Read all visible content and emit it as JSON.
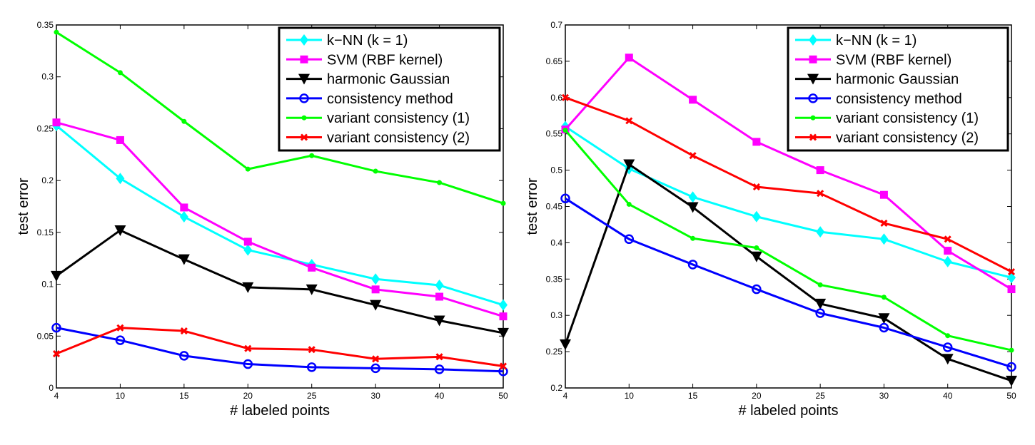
{
  "legend_labels": [
    "k−NN (k = 1)",
    "SVM (RBF kernel)",
    "harmonic Gaussian",
    "consistency method",
    "variant consistency (1)",
    "variant consistency (2)"
  ],
  "chart_data": [
    {
      "type": "line",
      "xlabel": "# labeled points",
      "ylabel": "test error",
      "x": [
        4,
        10,
        15,
        20,
        25,
        30,
        40,
        50
      ],
      "x_tick_labels": [
        "4",
        "10",
        "15",
        "20",
        "25",
        "30",
        "40",
        "50"
      ],
      "ylim": [
        0,
        0.35
      ],
      "y_ticks": [
        0,
        0.05,
        0.1,
        0.15,
        0.2,
        0.25,
        0.3,
        0.35
      ],
      "y_tick_labels": [
        "0",
        "0.05",
        "0.1",
        "0.15",
        "0.2",
        "0.25",
        "0.3",
        "0.35"
      ],
      "legend_position": "top-right",
      "grid": false,
      "series": [
        {
          "name": "k−NN (k = 1)",
          "color": "#00ffff",
          "marker": "diamond",
          "values": [
            0.253,
            0.202,
            0.165,
            0.133,
            0.119,
            0.105,
            0.099,
            0.08
          ]
        },
        {
          "name": "SVM (RBF kernel)",
          "color": "#ff00ff",
          "marker": "square",
          "values": [
            0.256,
            0.239,
            0.174,
            0.141,
            0.116,
            0.095,
            0.088,
            0.069
          ]
        },
        {
          "name": "harmonic Gaussian",
          "color": "#000000",
          "marker": "triangle-down",
          "values": [
            0.108,
            0.152,
            0.124,
            0.097,
            0.095,
            0.08,
            0.065,
            0.053
          ]
        },
        {
          "name": "consistency method",
          "color": "#0000ff",
          "marker": "circle",
          "values": [
            0.058,
            0.046,
            0.031,
            0.023,
            0.02,
            0.019,
            0.018,
            0.016
          ]
        },
        {
          "name": "variant consistency (1)",
          "color": "#00ff00",
          "marker": "dot",
          "values": [
            0.343,
            0.304,
            0.257,
            0.211,
            0.224,
            0.209,
            0.198,
            0.178
          ]
        },
        {
          "name": "variant consistency (2)",
          "color": "#ff0000",
          "marker": "x",
          "values": [
            0.033,
            0.058,
            0.055,
            0.038,
            0.037,
            0.028,
            0.03,
            0.021
          ]
        }
      ]
    },
    {
      "type": "line",
      "xlabel": "# labeled points",
      "ylabel": "test error",
      "x": [
        4,
        10,
        15,
        20,
        25,
        30,
        40,
        50
      ],
      "x_tick_labels": [
        "4",
        "10",
        "15",
        "20",
        "25",
        "30",
        "40",
        "50"
      ],
      "ylim": [
        0.2,
        0.7
      ],
      "y_ticks": [
        0.2,
        0.25,
        0.3,
        0.35,
        0.4,
        0.45,
        0.5,
        0.55,
        0.6,
        0.65,
        0.7
      ],
      "y_tick_labels": [
        "0.2",
        "0.25",
        "0.3",
        "0.35",
        "0.4",
        "0.45",
        "0.5",
        "0.55",
        "0.6",
        "0.65",
        "0.7"
      ],
      "legend_position": "top-right",
      "grid": false,
      "series": [
        {
          "name": "k−NN (k = 1)",
          "color": "#00ffff",
          "marker": "diamond",
          "values": [
            0.56,
            0.502,
            0.463,
            0.436,
            0.415,
            0.405,
            0.374,
            0.352
          ]
        },
        {
          "name": "SVM (RBF kernel)",
          "color": "#ff00ff",
          "marker": "square",
          "values": [
            0.556,
            0.655,
            0.597,
            0.539,
            0.5,
            0.466,
            0.389,
            0.336
          ]
        },
        {
          "name": "harmonic Gaussian",
          "color": "#000000",
          "marker": "triangle-down",
          "values": [
            0.26,
            0.508,
            0.449,
            0.381,
            0.316,
            0.296,
            0.24,
            0.21
          ]
        },
        {
          "name": "consistency method",
          "color": "#0000ff",
          "marker": "circle",
          "values": [
            0.461,
            0.405,
            0.37,
            0.336,
            0.303,
            0.283,
            0.256,
            0.229
          ]
        },
        {
          "name": "variant consistency (1)",
          "color": "#00ff00",
          "marker": "dot",
          "values": [
            0.555,
            0.453,
            0.406,
            0.393,
            0.342,
            0.325,
            0.272,
            0.252
          ]
        },
        {
          "name": "variant consistency (2)",
          "color": "#ff0000",
          "marker": "x",
          "values": [
            0.6,
            0.568,
            0.52,
            0.477,
            0.468,
            0.427,
            0.405,
            0.36
          ]
        }
      ]
    }
  ]
}
